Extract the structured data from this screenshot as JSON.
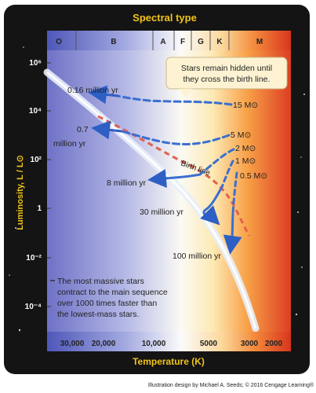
{
  "title": "Spectral type",
  "spectral_classes": [
    "O",
    "B",
    "A",
    "F",
    "G",
    "K",
    "M"
  ],
  "y_axis_label": "Luminosity, L / L⊙",
  "y_ticks": [
    "10⁶",
    "10⁴",
    "10²",
    "1",
    "10⁻²",
    "10⁻⁴"
  ],
  "x_axis_label": "Temperature (K)",
  "x_ticks": [
    "30,000",
    "20,000",
    "10,000",
    "5000",
    "3000",
    "2000"
  ],
  "callout": [
    "Stars remain hidden until",
    "they cross the birth line."
  ],
  "note": [
    "The most massive stars",
    "contract to the main sequence",
    "over 1000 times faster than",
    "the lowest-mass stars."
  ],
  "masses": [
    "15 M⊙",
    "5 M⊙",
    "2 M⊙",
    "1 M⊙",
    "0.5 M⊙"
  ],
  "times": [
    "0.16 million yr",
    "0.7",
    "million yr",
    "8 million yr",
    "30 million yr",
    "100 million yr"
  ],
  "birth_line_label": "Birth line",
  "credit": "Illustration design by Michael A. Seeds; © 2016 Cengage Learning®",
  "colors": {
    "frame": "#141414",
    "title_gold": "#f0c419",
    "track_blue": "#3a6fd1",
    "birth_red": "#e0624a",
    "main_sequence": "#e6ecf6"
  }
}
